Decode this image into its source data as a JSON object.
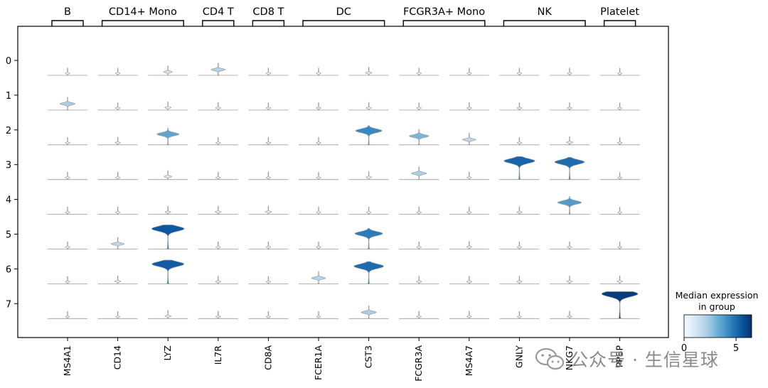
{
  "chart_data": {
    "type": "stacked_violin",
    "title": "",
    "xlabel": "",
    "ylabel": "",
    "genes": [
      "MS4A1",
      "CD14",
      "LYZ",
      "IL7R",
      "CD8A",
      "FCER1A",
      "CST3",
      "FCGR3A",
      "MS4A7",
      "GNLY",
      "NKG7",
      "PPBP"
    ],
    "clusters": [
      "0",
      "1",
      "2",
      "3",
      "4",
      "5",
      "6",
      "7"
    ],
    "gene_groups": [
      {
        "label": "B",
        "genes": [
          "MS4A1"
        ]
      },
      {
        "label": "CD14+ Mono",
        "genes": [
          "CD14",
          "LYZ"
        ]
      },
      {
        "label": "CD4 T",
        "genes": [
          "IL7R"
        ]
      },
      {
        "label": "CD8 T",
        "genes": [
          "CD8A"
        ]
      },
      {
        "label": "DC",
        "genes": [
          "FCER1A",
          "CST3"
        ]
      },
      {
        "label": "FCGR3A+ Mono",
        "genes": [
          "FCGR3A",
          "MS4A7"
        ]
      },
      {
        "label": "NK",
        "genes": [
          "GNLY",
          "NKG7"
        ]
      },
      {
        "label": "Platelet",
        "genes": [
          "PPBP"
        ]
      }
    ],
    "median_expression": [
      [
        0.2,
        0.2,
        1.0,
        2.0,
        0.2,
        0.2,
        0.5,
        0.2,
        0.2,
        0.2,
        0.2,
        0.1
      ],
      [
        2.2,
        0.2,
        0.5,
        0.3,
        0.2,
        0.2,
        0.3,
        0.2,
        0.2,
        0.2,
        0.2,
        0.1
      ],
      [
        0.2,
        0.3,
        3.5,
        0.2,
        0.2,
        0.2,
        4.3,
        3.0,
        1.8,
        0.2,
        0.5,
        0.2
      ],
      [
        0.2,
        0.2,
        0.8,
        0.2,
        0.2,
        0.2,
        0.4,
        2.2,
        0.2,
        5.2,
        5.0,
        0.1
      ],
      [
        0.2,
        0.2,
        0.4,
        0.5,
        0.5,
        0.2,
        0.2,
        0.2,
        0.2,
        0.3,
        3.8,
        0.1
      ],
      [
        0.2,
        1.8,
        5.5,
        0.2,
        0.2,
        0.2,
        4.6,
        0.2,
        0.3,
        0.2,
        0.2,
        0.1
      ],
      [
        0.2,
        0.5,
        5.4,
        0.3,
        0.2,
        2.0,
        5.0,
        0.3,
        0.3,
        0.3,
        0.4,
        0.4
      ],
      [
        0.1,
        0.1,
        0.5,
        0.2,
        0.1,
        0.1,
        2.2,
        0.2,
        0.2,
        0.1,
        0.2,
        6.2
      ]
    ],
    "colorbar": {
      "label": "Median expression\nin group",
      "min": 0,
      "max": 6.5,
      "ticks": [
        0,
        5
      ],
      "colormap": "Blues"
    },
    "colors": {
      "outline": "#9a9a9a",
      "frame": "#000000",
      "colormap_stops": [
        "#f7fbff",
        "#deebf7",
        "#c6dbef",
        "#9ecae1",
        "#6baed6",
        "#4292c6",
        "#2171b5",
        "#08519c",
        "#08306b"
      ]
    }
  },
  "watermark": {
    "text": "公众号 · 生信星球",
    "icon": "wechat-icon"
  }
}
